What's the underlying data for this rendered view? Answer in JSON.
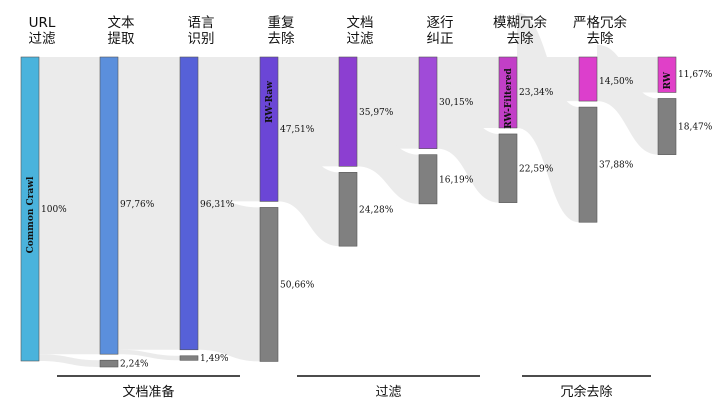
{
  "colors": {
    "cyan": "#4ab3dc",
    "blue": "#5b8fdc",
    "indigo": "#5661d8",
    "purple": "#6b46d6",
    "violet": "#8c3fd1",
    "orchid": "#a04bd8",
    "magenta": "#c23fc7",
    "pink": "#dc3fcc",
    "hotpink": "#e040c8",
    "gray": "#808080",
    "flow": "#ebebeb"
  },
  "stages": [
    {
      "id": "cc",
      "header": [
        "URL",
        "过滤"
      ],
      "node_label": "Common Crawl",
      "keep_pct": "100%",
      "keep": 100,
      "drop_pct": "",
      "drop": 0,
      "color": "cyan"
    },
    {
      "id": "s1",
      "header": [
        "文本",
        "提取"
      ],
      "node_label": "",
      "keep_pct": "97,76%",
      "keep": 97.76,
      "drop_pct": "2,24%",
      "drop": 2.24,
      "color": "blue"
    },
    {
      "id": "s2",
      "header": [
        "语言",
        "识别"
      ],
      "node_label": "",
      "keep_pct": "96,31%",
      "keep": 96.31,
      "drop_pct": "1,49%",
      "drop": 1.49,
      "color": "indigo"
    },
    {
      "id": "s3",
      "header": [
        "重复",
        "去除"
      ],
      "node_label": "RW-Raw",
      "keep_pct": "47,51%",
      "keep": 47.51,
      "drop_pct": "50,66%",
      "drop": 50.66,
      "color": "purple"
    },
    {
      "id": "s4",
      "header": [
        "文档",
        "过滤"
      ],
      "node_label": "",
      "keep_pct": "35,97%",
      "keep": 35.97,
      "drop_pct": "24,28%",
      "drop": 24.28,
      "color": "violet"
    },
    {
      "id": "s5",
      "header": [
        "逐行",
        "纠正"
      ],
      "node_label": "",
      "keep_pct": "30,15%",
      "keep": 30.15,
      "drop_pct": "16,19%",
      "drop": 16.19,
      "color": "orchid"
    },
    {
      "id": "s6",
      "header": [
        "模糊冗余",
        "去除"
      ],
      "node_label": "RW-Filtered",
      "keep_pct": "23,34%",
      "keep": 23.34,
      "drop_pct": "22,59%",
      "drop": 22.59,
      "color": "magenta"
    },
    {
      "id": "s7",
      "header": [
        "严格冗余",
        "去除"
      ],
      "node_label": "",
      "keep_pct": "14,50%",
      "keep": 14.5,
      "drop_pct": "37,88%",
      "drop": 37.88,
      "color": "pink"
    },
    {
      "id": "s8",
      "header": [],
      "node_label": "RW",
      "keep_pct": "11,67%",
      "keep": 11.67,
      "drop_pct": "18,47%",
      "drop": 18.47,
      "color": "hotpink"
    }
  ],
  "groups": [
    {
      "label": "文档准备",
      "from": 0,
      "to": 2
    },
    {
      "label": "过滤",
      "from": 3,
      "to": 5
    },
    {
      "label": "冗余去除",
      "from": 6,
      "to": 7
    }
  ]
}
